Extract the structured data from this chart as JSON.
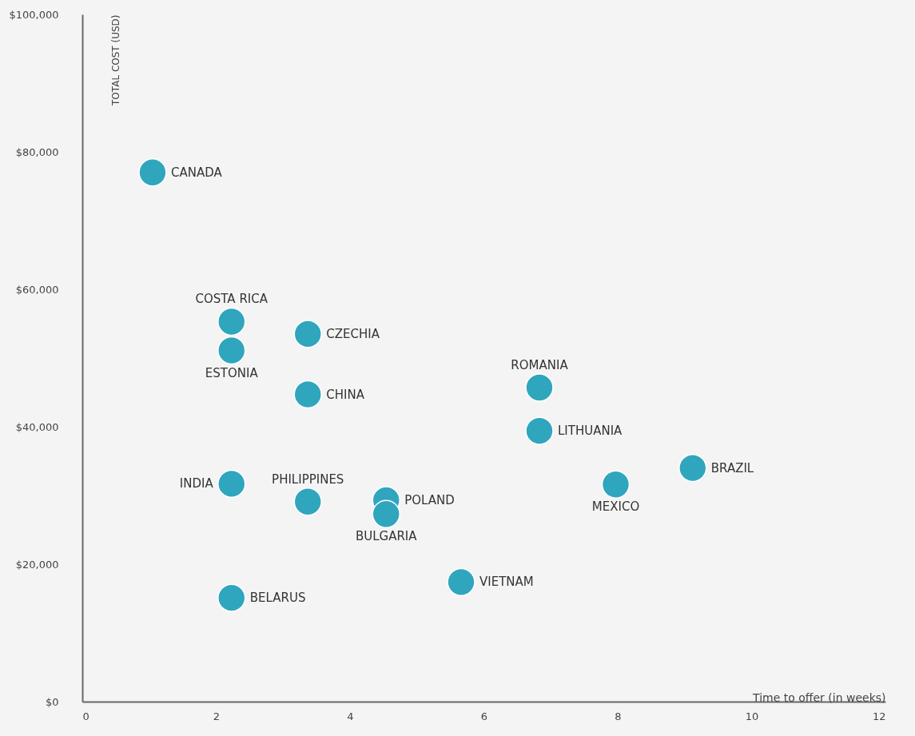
{
  "chart_data": {
    "type": "scatter",
    "xlabel": "Time to offer (in weeks)",
    "ylabel": "TOTAL COST (USD)",
    "xlim": [
      0,
      12
    ],
    "xticks": [
      0,
      2,
      4,
      6,
      8,
      10,
      12
    ],
    "ylim": [
      0,
      100000
    ],
    "yticks": [
      {
        "value": 0,
        "label": "$0"
      },
      {
        "value": 20000,
        "label": "$20,000"
      },
      {
        "value": 40000,
        "label": "$40,000"
      },
      {
        "value": 60000,
        "label": "$60,000"
      },
      {
        "value": 80000,
        "label": "$80,000"
      },
      {
        "value": 100000,
        "label": "$100,000"
      }
    ],
    "grid": false,
    "legend": false,
    "marker": "circle",
    "series": [
      {
        "name": "CANADA",
        "color": "#2fa6bd",
        "x": [
          1.05
        ],
        "values": [
          77000
        ]
      },
      {
        "name": "COSTA RICA",
        "color": "#2fa6bd",
        "x": [
          2.23
        ],
        "values": [
          55300
        ]
      },
      {
        "name": "ESTONIA",
        "color": "#2fa6bd",
        "x": [
          2.23
        ],
        "values": [
          51100
        ]
      },
      {
        "name": "CZECHIA",
        "color": "#2fa6bd",
        "x": [
          3.37
        ],
        "values": [
          53500
        ]
      },
      {
        "name": "CHINA",
        "color": "#2fa6bd",
        "x": [
          3.37
        ],
        "values": [
          44700
        ]
      },
      {
        "name": "ROMANIA",
        "color": "#2fa6bd",
        "x": [
          6.83
        ],
        "values": [
          45700
        ]
      },
      {
        "name": "LITHUANIA",
        "color": "#2fa6bd",
        "x": [
          6.83
        ],
        "values": [
          39400
        ]
      },
      {
        "name": "BRAZIL",
        "color": "#2fa6bd",
        "x": [
          9.12
        ],
        "values": [
          34000
        ]
      },
      {
        "name": "MEXICO",
        "color": "#2fa6bd",
        "x": [
          7.97
        ],
        "values": [
          31600
        ]
      },
      {
        "name": "INDIA",
        "color": "#2fa6bd",
        "x": [
          2.23
        ],
        "values": [
          31700
        ]
      },
      {
        "name": "PHILIPPINES",
        "color": "#2fa6bd",
        "x": [
          3.37
        ],
        "values": [
          29100
        ]
      },
      {
        "name": "POLAND",
        "color": "#2fa6bd",
        "x": [
          4.54
        ],
        "values": [
          29300
        ]
      },
      {
        "name": "BULGARIA",
        "color": "#2fa6bd",
        "x": [
          4.54
        ],
        "values": [
          27300
        ]
      },
      {
        "name": "VIETNAM",
        "color": "#2fa6bd",
        "x": [
          5.66
        ],
        "values": [
          17400
        ]
      },
      {
        "name": "BELARUS",
        "color": "#2fa6bd",
        "x": [
          2.23
        ],
        "values": [
          15100
        ]
      }
    ]
  }
}
